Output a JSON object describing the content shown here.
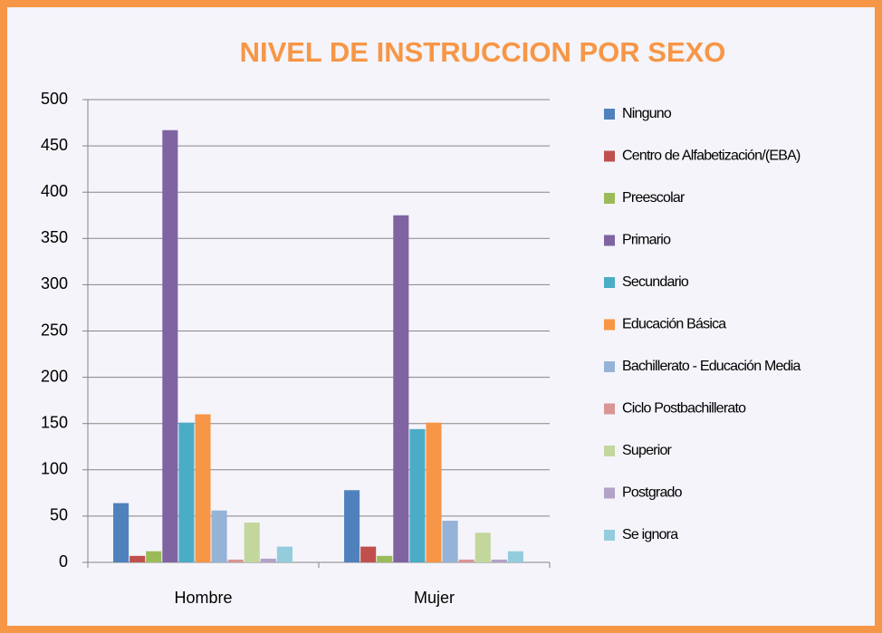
{
  "chart_data": {
    "type": "bar",
    "title": "NIVEL DE INSTRUCCION POR SEXO",
    "categories": [
      "Hombre",
      "Mujer"
    ],
    "series": [
      {
        "name": "Ninguno",
        "color": "#4F81BD",
        "values": [
          64,
          78
        ]
      },
      {
        "name": "Centro de Alfabetización/(EBA)",
        "color": "#C0504D",
        "values": [
          7,
          17
        ]
      },
      {
        "name": "Preescolar",
        "color": "#9BBB59",
        "values": [
          12,
          7
        ]
      },
      {
        "name": "Primario",
        "color": "#8064A2",
        "values": [
          467,
          375
        ]
      },
      {
        "name": "Secundario",
        "color": "#4BACC6",
        "values": [
          151,
          144
        ]
      },
      {
        "name": "Educación Básica",
        "color": "#F79646",
        "values": [
          160,
          151
        ]
      },
      {
        "name": "Bachillerato - Educación Media",
        "color": "#95B3D7",
        "values": [
          56,
          45
        ]
      },
      {
        "name": "Ciclo Postbachillerato",
        "color": "#D99694",
        "values": [
          3,
          3
        ]
      },
      {
        "name": "Superior",
        "color": "#C3D69B",
        "values": [
          43,
          32
        ]
      },
      {
        "name": "Postgrado",
        "color": "#B3A2C7",
        "values": [
          4,
          3
        ]
      },
      {
        "name": "Se ignora",
        "color": "#93CDDD",
        "values": [
          17,
          12
        ]
      }
    ],
    "ylim": [
      0,
      500
    ],
    "yticks": [
      0,
      50,
      100,
      150,
      200,
      250,
      300,
      350,
      400,
      450,
      500
    ],
    "grid": true,
    "legend": "right"
  }
}
